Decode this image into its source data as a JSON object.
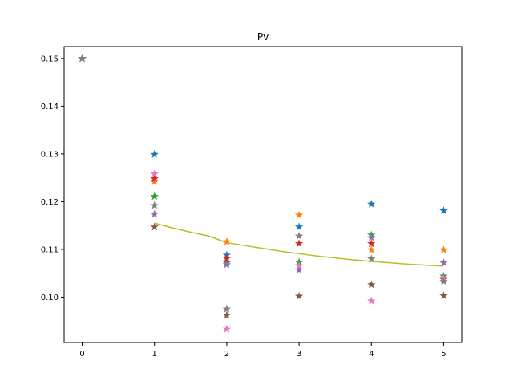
{
  "chart_data": {
    "type": "scatter",
    "title": "Pv",
    "xlabel": "",
    "ylabel": "",
    "xlim": [
      -0.25,
      5.25
    ],
    "ylim": [
      0.0905,
      0.1525
    ],
    "xticks": [
      0,
      1,
      2,
      3,
      4,
      5
    ],
    "yticks": [
      0.1,
      0.11,
      0.12,
      0.13,
      0.14,
      0.15
    ],
    "ytick_labels": [
      "0.10",
      "0.11",
      "0.12",
      "0.13",
      "0.14",
      "0.15"
    ],
    "grid": false,
    "x": [
      0,
      1,
      2,
      3,
      4,
      5
    ],
    "series": [
      {
        "color": "#1f77b4",
        "marker": "star",
        "values": [
          0.15,
          0.1299,
          0.1088,
          0.1147,
          0.1195,
          0.1181
        ]
      },
      {
        "color": "#ff7f0e",
        "marker": "star",
        "values": [
          0.15,
          0.1242,
          0.1116,
          0.1172,
          0.1099,
          0.1099
        ]
      },
      {
        "color": "#2ca02c",
        "marker": "star",
        "values": [
          0.15,
          0.1211,
          0.1072,
          0.1073,
          0.113,
          0.1044
        ]
      },
      {
        "color": "#d62728",
        "marker": "star",
        "values": [
          0.15,
          0.1248,
          0.1081,
          0.1112,
          0.1112,
          0.1037
        ]
      },
      {
        "color": "#9467bd",
        "marker": "star",
        "values": [
          0.15,
          0.1174,
          0.1068,
          0.1057,
          0.1125,
          0.1072
        ]
      },
      {
        "color": "#8c564b",
        "marker": "star",
        "values": [
          0.15,
          0.1147,
          0.0962,
          0.1002,
          0.1026,
          0.1003
        ]
      },
      {
        "color": "#e377c2",
        "marker": "star",
        "values": [
          0.15,
          0.1258,
          0.0933,
          0.1066,
          0.0992,
          0.104
        ]
      },
      {
        "color": "#7f7f7f",
        "marker": "star",
        "values": [
          0.15,
          0.1192,
          0.0975,
          0.1128,
          0.108,
          0.1033
        ]
      }
    ],
    "fit_curve": {
      "color": "#bcbd22",
      "x": [
        1,
        1.25,
        1.5,
        1.75,
        2,
        2.25,
        2.5,
        2.75,
        3,
        3.25,
        3.5,
        3.75,
        4,
        4.25,
        4.5,
        4.75,
        5
      ],
      "values": [
        0.1155,
        0.1145,
        0.1136,
        0.1128,
        0.1114,
        0.1108,
        0.1102,
        0.1096,
        0.1091,
        0.1086,
        0.1082,
        0.1078,
        0.1075,
        0.1072,
        0.1069,
        0.1067,
        0.1065
      ]
    }
  }
}
